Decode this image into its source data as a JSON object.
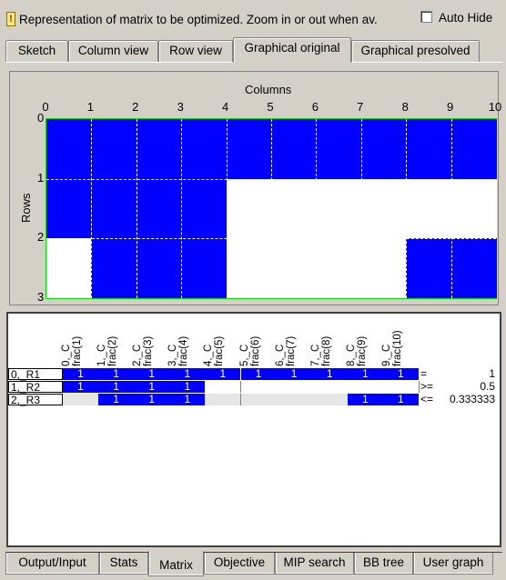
{
  "info_bar": {
    "icon": "info-warning-icon",
    "text": "Representation of matrix to be optimized. Zoom in or out when av.",
    "autohide_label": "Auto Hide",
    "autohide_checked": false
  },
  "top_tabs": [
    "Sketch",
    "Column view",
    "Row view",
    "Graphical original",
    "Graphical presolved"
  ],
  "active_top_tab": "Graphical original",
  "graph": {
    "columns_label": "Columns",
    "rows_label": "Rows",
    "col_ticks": [
      "0",
      "1",
      "2",
      "3",
      "4",
      "5",
      "6",
      "7",
      "8",
      "9",
      "10"
    ],
    "row_ticks": [
      "0",
      "1",
      "2",
      "3"
    ],
    "pattern": [
      [
        1,
        1,
        1,
        1,
        1,
        1,
        1,
        1,
        1,
        1
      ],
      [
        1,
        1,
        1,
        1,
        0,
        0,
        0,
        0,
        0,
        0
      ],
      [
        0,
        1,
        1,
        1,
        0,
        0,
        0,
        0,
        1,
        1
      ]
    ],
    "colors": {
      "filled": "#0000ff",
      "empty": "#ffffff",
      "border": "#00e000"
    }
  },
  "matrix": {
    "col_headers": [
      "0,_C",
      "frac(1)",
      "1,_C",
      "frac(2)",
      "2,_C",
      "frac(3)",
      "3,_C",
      "frac(4)",
      "4,_C",
      "frac(5)",
      "5,_C",
      "frac(6)",
      "6,_C",
      "frac(7)",
      "7,_C",
      "frac(8)",
      "8,_C",
      "frac(9)",
      "9,_C",
      "frac(10)"
    ],
    "rows": [
      {
        "label": "0,_R1",
        "cells": [
          "1",
          "1",
          "1",
          "1",
          "1",
          "1",
          "1",
          "1",
          "1",
          "1"
        ],
        "filled": [
          1,
          1,
          1,
          1,
          1,
          1,
          1,
          1,
          1,
          1
        ],
        "op": "=",
        "rhs": "1"
      },
      {
        "label": "1,_R2",
        "cells": [
          "1",
          "1",
          "1",
          "1",
          "",
          "",
          "",
          "",
          "",
          ""
        ],
        "filled": [
          1,
          1,
          1,
          1,
          0,
          0,
          0,
          0,
          0,
          0
        ],
        "op": ">=",
        "rhs": "0.5"
      },
      {
        "label": "2,_R3",
        "cells": [
          "",
          "1",
          "1",
          "1",
          "",
          "",
          "",
          "",
          "1",
          "1"
        ],
        "filled": [
          0,
          1,
          1,
          1,
          0,
          0,
          0,
          0,
          1,
          1
        ],
        "op": "<=",
        "rhs": "0.333333"
      }
    ]
  },
  "bottom_tabs": [
    "Output/Input",
    "Stats",
    "Matrix",
    "Objective",
    "MIP search",
    "BB tree",
    "User graph"
  ],
  "active_bottom_tab": "Matrix"
}
